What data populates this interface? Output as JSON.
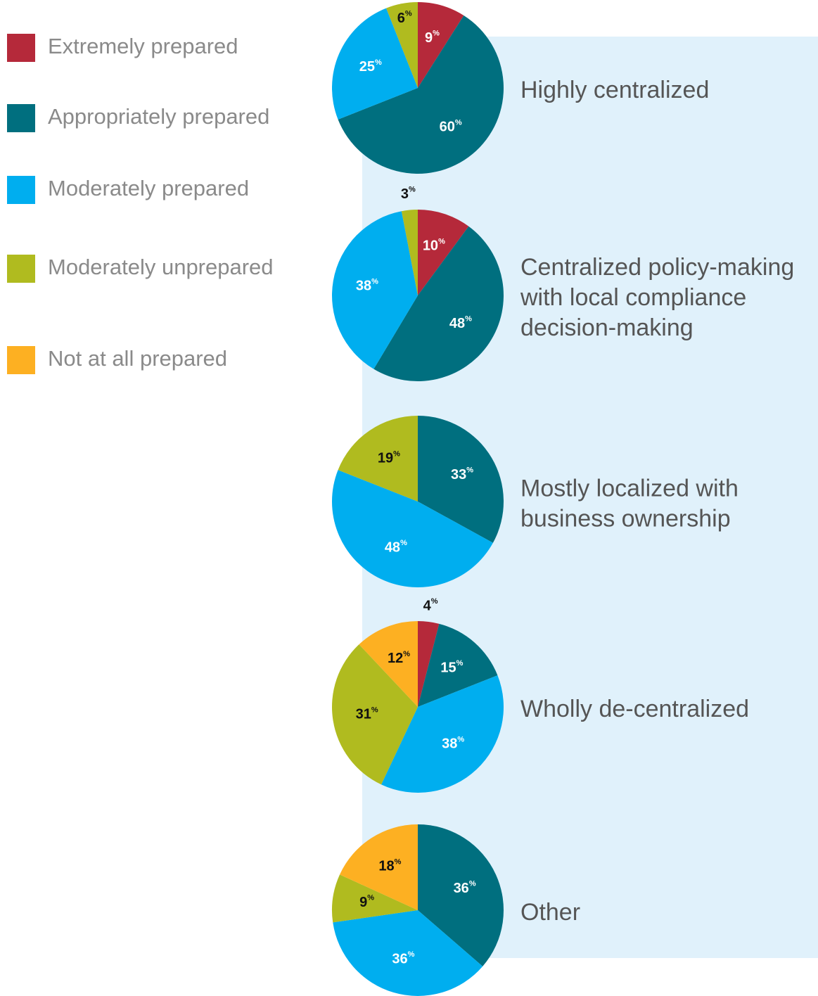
{
  "chart_data": {
    "type": "pie",
    "categories": [
      "Extremely prepared",
      "Appropriately prepared",
      "Moderately prepared",
      "Moderately unprepared",
      "Not at all prepared"
    ],
    "colors": [
      "#b5293a",
      "#006f7f",
      "#00aeef",
      "#b0bb1f",
      "#fdb022"
    ],
    "pies": [
      {
        "label": [
          "Highly centralized"
        ],
        "values": [
          9,
          60,
          25,
          6,
          null
        ],
        "value_labels": [
          "9%",
          "60%",
          "25%",
          "6%",
          null
        ]
      },
      {
        "label": [
          "Centralized policy-making",
          "with local compliance",
          "decision-making"
        ],
        "values": [
          10,
          48,
          38,
          3,
          null
        ],
        "value_labels": [
          "10%",
          "48%",
          "38%",
          "3%",
          null
        ]
      },
      {
        "label": [
          "Mostly localized with",
          "business ownership"
        ],
        "values": [
          null,
          33,
          48,
          19,
          null
        ],
        "value_labels": [
          null,
          "33%",
          "48%",
          "19%",
          null
        ]
      },
      {
        "label": [
          "Wholly de-centralized"
        ],
        "values": [
          4,
          15,
          38,
          31,
          12
        ],
        "value_labels": [
          "4%",
          "15%",
          "38%",
          "31%",
          "12%"
        ]
      },
      {
        "label": [
          "Other"
        ],
        "values": [
          null,
          36,
          36,
          9,
          18
        ],
        "value_labels": [
          null,
          "36%",
          "36%",
          "9%",
          "18%"
        ]
      }
    ]
  }
}
